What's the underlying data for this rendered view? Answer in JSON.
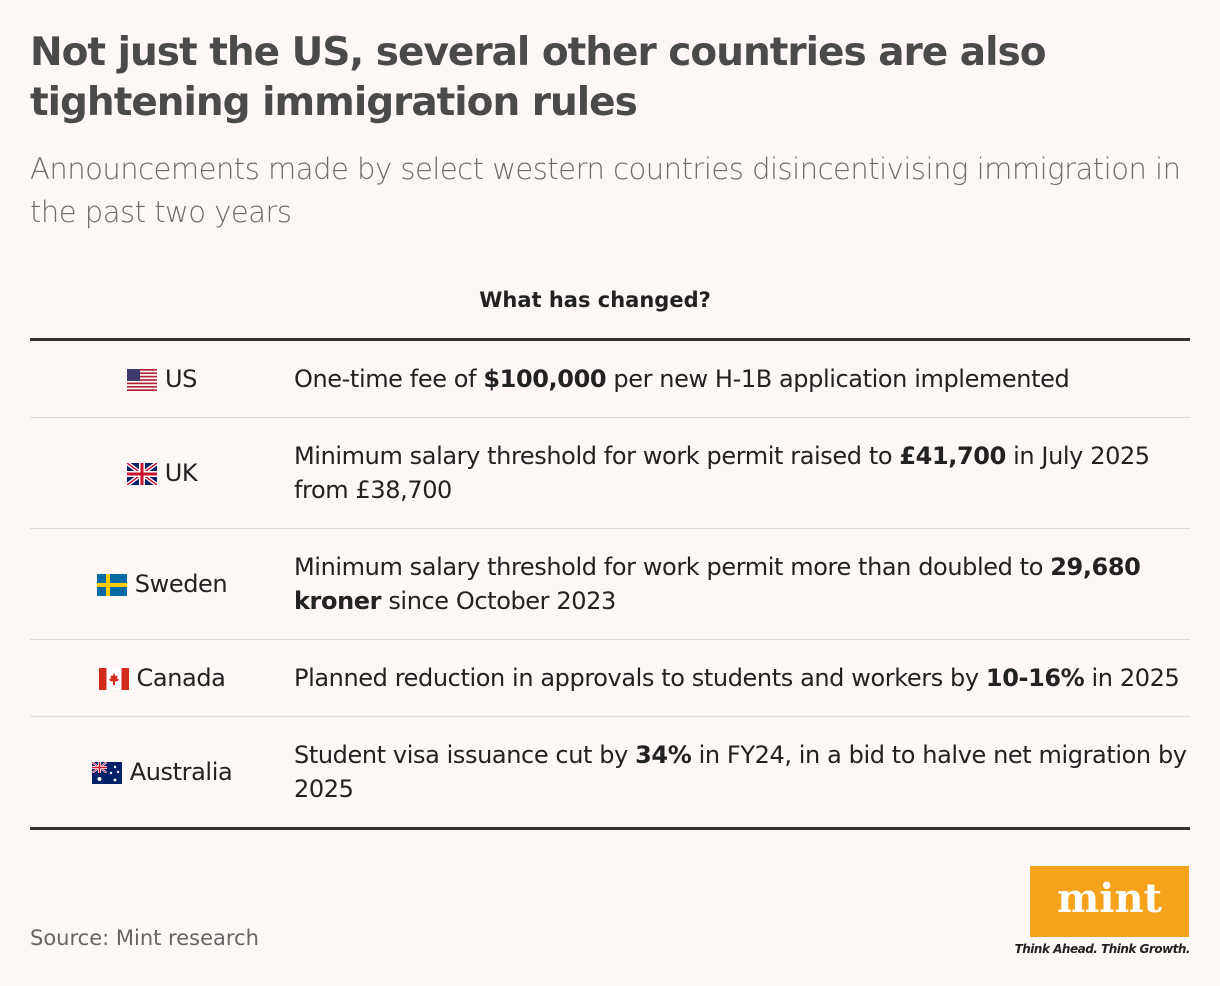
{
  "header": {
    "title": "Not just the US, several other countries are also tightening immigration rules",
    "subtitle": "Announcements made by select western countries disincentivising immigration in the past two years"
  },
  "table": {
    "column_header": "What has changed?",
    "rows": [
      {
        "country": "US",
        "change": [
          {
            "text": "One-time fee of "
          },
          {
            "bold": "$100,000"
          },
          {
            "text": " per new H-1B application implemented"
          }
        ]
      },
      {
        "country": "UK",
        "change": [
          {
            "text": "Minimum salary threshold for work permit raised to "
          },
          {
            "bold": "£41,700"
          },
          {
            "text": " in July 2025 from £38,700"
          }
        ]
      },
      {
        "country": "Sweden",
        "change": [
          {
            "text": "Minimum salary threshold for work permit more than doubled to "
          },
          {
            "bold": "29,680 kroner"
          },
          {
            "text": " since October 2023"
          }
        ]
      },
      {
        "country": "Canada",
        "change": [
          {
            "text": "Planned reduction in approvals to students and workers by "
          },
          {
            "bold": "10-16%"
          },
          {
            "text": " in 2025"
          }
        ]
      },
      {
        "country": "Australia",
        "change": [
          {
            "text": "Student visa issuance cut by "
          },
          {
            "bold": "34%"
          },
          {
            "text": " in FY24, in a bid to halve net migration by 2025"
          }
        ]
      }
    ]
  },
  "footer": {
    "source": "Source: Mint research",
    "logo": "mint",
    "tagline": "Think Ahead. Think Growth."
  }
}
